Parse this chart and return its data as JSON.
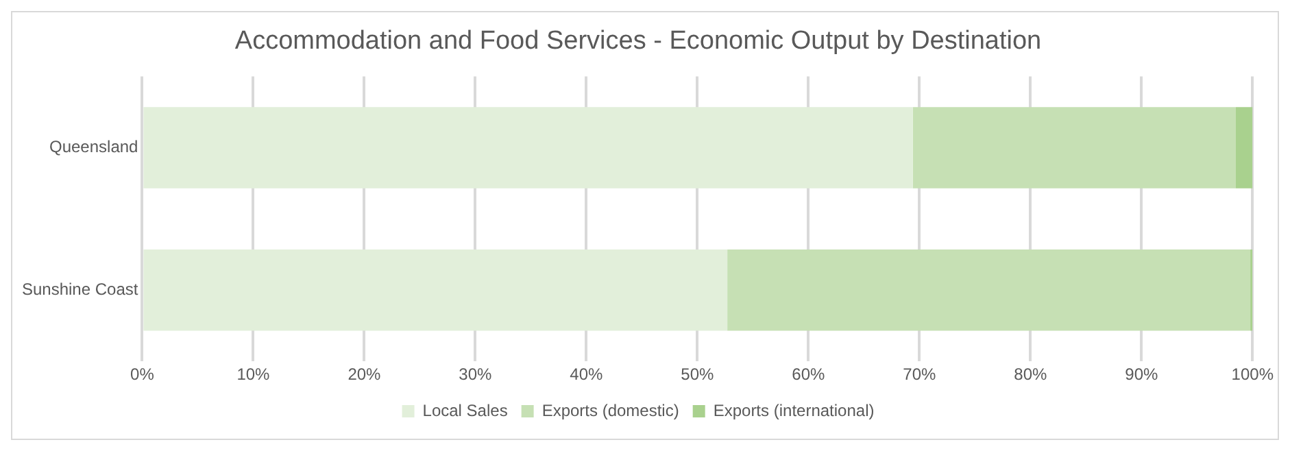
{
  "chart_data": {
    "type": "bar",
    "title": "Accommodation and Food Services - Economic Output by Destination",
    "orientation": "horizontal",
    "stacked": true,
    "categories": [
      "Queensland",
      "Sunshine Coast"
    ],
    "series": [
      {
        "name": "Local Sales",
        "color": "#e2efda",
        "values": [
          69.4,
          52.7
        ]
      },
      {
        "name": "Exports (domestic)",
        "color": "#c6e0b4",
        "values": [
          29.1,
          47.1
        ]
      },
      {
        "name": "Exports (international)",
        "color": "#a9d18e",
        "values": [
          1.5,
          0.2
        ]
      }
    ],
    "xlim": [
      0,
      100
    ],
    "xticks": [
      {
        "value": 0,
        "label": "0%"
      },
      {
        "value": 10,
        "label": "10%"
      },
      {
        "value": 20,
        "label": "20%"
      },
      {
        "value": 30,
        "label": "30%"
      },
      {
        "value": 40,
        "label": "40%"
      },
      {
        "value": 50,
        "label": "50%"
      },
      {
        "value": 60,
        "label": "60%"
      },
      {
        "value": 70,
        "label": "70%"
      },
      {
        "value": 80,
        "label": "80%"
      },
      {
        "value": 90,
        "label": "90%"
      },
      {
        "value": 100,
        "label": "100%"
      }
    ],
    "grid": "x",
    "legend": "bottom"
  }
}
